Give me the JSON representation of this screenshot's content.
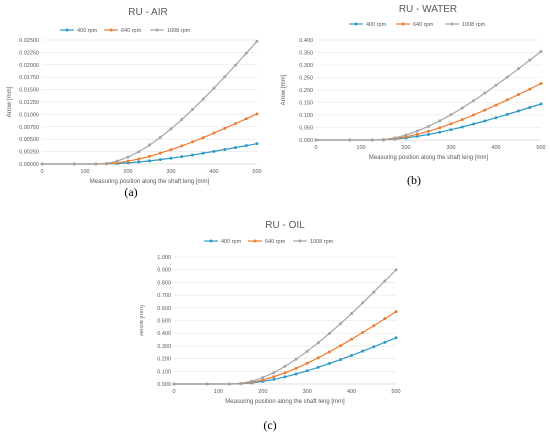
{
  "chart_data": [
    {
      "type": "line",
      "title": "RU - AIR",
      "caption": "(a)",
      "xlabel": "Measuring position along the shaft leng [mm]",
      "ylabel": "Arrow [mm]",
      "xlim": [
        0,
        500
      ],
      "ylim": [
        0,
        0.025
      ],
      "xticks": [
        "0",
        "100",
        "200",
        "300",
        "400",
        "500"
      ],
      "yticks": [
        "0.00000",
        "0.00250",
        "0.00500",
        "0.00750",
        "0.01000",
        "0.01250",
        "0.01500",
        "0.01750",
        "0.02000",
        "0.02250",
        "0.02500"
      ],
      "grid": "horizontal",
      "legend_position": "top",
      "x": [
        0,
        75,
        125,
        150,
        175,
        200,
        225,
        250,
        275,
        300,
        325,
        350,
        375,
        400,
        425,
        450,
        475,
        500
      ],
      "series": [
        {
          "name": "400 rpm",
          "color": "#2e9ac7",
          "values": [
            0,
            0,
            0,
            2e-05,
            0.0001,
            0.00023,
            0.00041,
            0.00063,
            0.00089,
            0.00117,
            0.00148,
            0.00182,
            0.00217,
            0.00254,
            0.00292,
            0.00331,
            0.00371,
            0.0041
          ]
        },
        {
          "name": "640 rpm",
          "color": "#ed7d31",
          "values": [
            0,
            0,
            0,
            5e-05,
            0.00024,
            0.00057,
            0.00101,
            0.00155,
            0.00219,
            0.00288,
            0.00364,
            0.00446,
            0.00533,
            0.00624,
            0.00718,
            0.00814,
            0.00912,
            0.01008
          ]
        },
        {
          "name": "1008 rpm",
          "color": "#a5a5a5",
          "values": [
            0,
            0,
            0,
            0.00012,
            0.00059,
            0.0014,
            0.00248,
            0.00382,
            0.00537,
            0.00709,
            0.00896,
            0.01097,
            0.01309,
            0.0153,
            0.01759,
            0.01994,
            0.02233,
            0.02475
          ]
        }
      ]
    },
    {
      "type": "line",
      "title": "RU - WATER",
      "caption": "(b)",
      "xlabel": "Measuring position along the shaft leng [mm]",
      "ylabel": "Arrow [mm]",
      "xlim": [
        0,
        500
      ],
      "ylim": [
        0,
        0.4
      ],
      "xticks": [
        "0",
        "100",
        "200",
        "300",
        "400",
        "500"
      ],
      "yticks": [
        "0.000",
        "0.050",
        "0.100",
        "0.150",
        "0.200",
        "0.250",
        "0.300",
        "0.350",
        "0.400"
      ],
      "grid": "horizontal",
      "legend_position": "top",
      "x": [
        0,
        75,
        125,
        150,
        175,
        200,
        225,
        250,
        275,
        300,
        325,
        350,
        375,
        400,
        425,
        450,
        475,
        500
      ],
      "series": [
        {
          "name": "400 rpm",
          "color": "#2e9ac7",
          "values": [
            0,
            0,
            0,
            0.0007,
            0.0035,
            0.0082,
            0.0145,
            0.0222,
            0.0312,
            0.0412,
            0.0521,
            0.0638,
            0.0762,
            0.0891,
            0.1024,
            0.1161,
            0.13,
            0.1441
          ]
        },
        {
          "name": "640 rpm",
          "color": "#ed7d31",
          "values": [
            0,
            0,
            0,
            0.0011,
            0.0054,
            0.0128,
            0.0226,
            0.0348,
            0.0489,
            0.0646,
            0.0817,
            0.1,
            0.1194,
            0.1396,
            0.1605,
            0.1819,
            0.2037,
            0.2258
          ]
        },
        {
          "name": "1008 rpm",
          "color": "#a5a5a5",
          "values": [
            0,
            0,
            0,
            0.0018,
            0.0085,
            0.02,
            0.0355,
            0.0546,
            0.0767,
            0.1014,
            0.1281,
            0.1568,
            0.1873,
            0.219,
            0.2517,
            0.2853,
            0.3195,
            0.3542
          ]
        }
      ]
    },
    {
      "type": "line",
      "title": "RU - OIL",
      "caption": "(c)",
      "xlabel": "Measuring position along the shaft leng [mm]",
      "ylabel": "Arrow [mm]",
      "xlim": [
        0,
        500
      ],
      "ylim": [
        0,
        1.0
      ],
      "xticks": [
        "0",
        "100",
        "200",
        "300",
        "400",
        "500"
      ],
      "yticks": [
        "0.000",
        "0.100",
        "0.200",
        "0.300",
        "0.400",
        "0.500",
        "0.600",
        "0.700",
        "0.800",
        "0.900",
        "1.000"
      ],
      "grid": "horizontal",
      "legend_position": "top",
      "x": [
        0,
        75,
        125,
        150,
        175,
        200,
        225,
        250,
        275,
        300,
        325,
        350,
        375,
        400,
        425,
        450,
        475,
        500
      ],
      "series": [
        {
          "name": "400 rpm",
          "color": "#2e9ac7",
          "values": [
            0,
            0,
            0,
            0.0018,
            0.0087,
            0.0206,
            0.0364,
            0.0561,
            0.0788,
            0.1041,
            0.1316,
            0.1611,
            0.1924,
            0.2249,
            0.2586,
            0.2931,
            0.3282,
            0.3639
          ]
        },
        {
          "name": "640 rpm",
          "color": "#ed7d31",
          "values": [
            0,
            0,
            0,
            0.0028,
            0.0137,
            0.0323,
            0.0571,
            0.0878,
            0.1235,
            0.1632,
            0.2063,
            0.2525,
            0.3015,
            0.3526,
            0.4053,
            0.4594,
            0.5144,
            0.5703
          ]
        },
        {
          "name": "1008 rpm",
          "color": "#a5a5a5",
          "values": [
            0,
            0,
            0,
            0.0044,
            0.0216,
            0.0509,
            0.09,
            0.1384,
            0.1946,
            0.2571,
            0.3251,
            0.3979,
            0.4751,
            0.5556,
            0.6387,
            0.7239,
            0.8107,
            0.8987
          ]
        }
      ]
    }
  ]
}
